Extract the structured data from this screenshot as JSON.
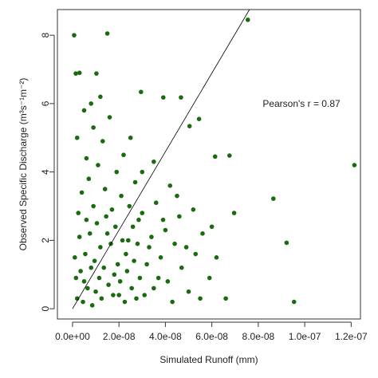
{
  "chart_data": {
    "type": "scatter",
    "x_label": "Simulated Runoff (mm)",
    "y_label": "Observed Specific Discharge (m³s⁻¹m⁻²)",
    "annotation": "Pearson's r = 0.87",
    "xlim": [
      -6.5e-09,
      1.24e-07
    ],
    "ylim": [
      -0.3,
      8.75
    ],
    "xticks": [
      {
        "value": 0,
        "label": "0.0e+00"
      },
      {
        "value": 2e-08,
        "label": "2.0e-08"
      },
      {
        "value": 4e-08,
        "label": "4.0e-08"
      },
      {
        "value": 6e-08,
        "label": "6.0e-08"
      },
      {
        "value": 8e-08,
        "label": "8.0e-08"
      },
      {
        "value": 1e-07,
        "label": "1.0e-07"
      },
      {
        "value": 1.2e-07,
        "label": "1.2e-07"
      }
    ],
    "yticks": [
      0,
      2,
      4,
      6,
      8
    ],
    "reference_line": {
      "x": [
        0,
        7.62e-08
      ],
      "y": [
        0,
        8.75
      ],
      "color": "#000000"
    },
    "series": [
      {
        "color": "#1a6b0f",
        "x": [
          7e-10,
          1.5e-08,
          7.55e-08,
          1.214e-07,
          8.65e-08,
          9.22e-08,
          9.54e-08,
          6.96e-08,
          6.76e-08,
          6.14e-08,
          5.45e-08,
          5.04e-08,
          4.67e-08,
          3.91e-08,
          2.95e-08,
          1.4e-09,
          3e-09,
          1.03e-08,
          2e-09,
          5e-09,
          8e-09,
          1e-08,
          1.2e-08,
          3e-09,
          6e-09,
          9e-09,
          1.5e-08,
          1.8e-08,
          2e-08,
          2.3e-08,
          2.6e-08,
          2.9e-08,
          3.2e-08,
          3.5e-08,
          4e-09,
          7e-09,
          1.1e-08,
          1.4e-08,
          1.7e-08,
          2.1e-08,
          2.4e-08,
          2.8e-08,
          3e-08,
          3.4e-08,
          3.8e-08,
          4.1e-08,
          4.4e-08,
          4.7e-08,
          5e-08,
          5.3e-08,
          5.6e-08,
          5.9e-08,
          6.2e-08,
          6.6e-08,
          3.6e-08,
          3.9e-08,
          4.2e-08,
          2.2e-08,
          1.3e-08,
          6e-09,
          9e-09,
          1.6e-08,
          2.5e-08,
          3e-08,
          1e-09,
          1.5e-09,
          2.5e-09,
          3.5e-09,
          4.5e-09,
          5.5e-09,
          6.5e-09,
          7.5e-09,
          8.5e-09,
          9.5e-09,
          1.05e-08,
          1.15e-08,
          1.25e-08,
          1.35e-08,
          1.45e-08,
          1.55e-08,
          1.65e-08,
          1.75e-08,
          1.85e-08,
          1.95e-08,
          2.05e-08,
          2.15e-08,
          2.25e-08,
          2.35e-08,
          2.45e-08,
          2.55e-08,
          2.65e-08,
          2.75e-08,
          2.85e-08,
          3.1e-08,
          3.3e-08,
          3.7e-08,
          4e-08,
          4.3e-08,
          4.6e-08,
          4.9e-08,
          5.2e-08,
          5.5e-08,
          6e-08,
          4.5e-08,
          3.5e-08,
          2.7e-08,
          1.9e-08,
          2e-09,
          5e-09,
          1.2e-08,
          8e-09
        ],
        "y": [
          8.0,
          8.05,
          8.45,
          4.2,
          3.22,
          1.93,
          0.2,
          2.8,
          4.48,
          4.45,
          5.55,
          5.34,
          6.18,
          6.18,
          6.34,
          6.88,
          6.9,
          6.88,
          0.3,
          0.8,
          1.2,
          0.5,
          1.8,
          2.1,
          2.6,
          3.0,
          2.2,
          1.0,
          0.4,
          1.6,
          2.4,
          0.9,
          1.3,
          0.6,
          3.4,
          3.8,
          4.2,
          3.5,
          2.9,
          3.3,
          2.0,
          1.9,
          2.8,
          2.1,
          1.5,
          0.8,
          1.9,
          1.2,
          0.5,
          1.6,
          2.2,
          0.9,
          1.5,
          0.3,
          3.1,
          2.6,
          3.6,
          4.5,
          4.9,
          4.4,
          5.3,
          5.6,
          5.0,
          4.0,
          1.5,
          0.9,
          2.8,
          1.1,
          0.2,
          1.6,
          0.6,
          2.2,
          0.1,
          1.4,
          2.5,
          0.9,
          0.3,
          1.2,
          2.7,
          0.7,
          1.9,
          0.4,
          2.4,
          1.3,
          0.8,
          2.0,
          0.2,
          1.1,
          3.0,
          0.6,
          1.4,
          0.3,
          2.6,
          0.4,
          1.8,
          0.9,
          2.3,
          0.2,
          2.7,
          1.8,
          2.9,
          0.3,
          2.4,
          3.3,
          4.3,
          3.7,
          4.0,
          5.0,
          5.8,
          6.2,
          6.0
        ]
      }
    ]
  }
}
